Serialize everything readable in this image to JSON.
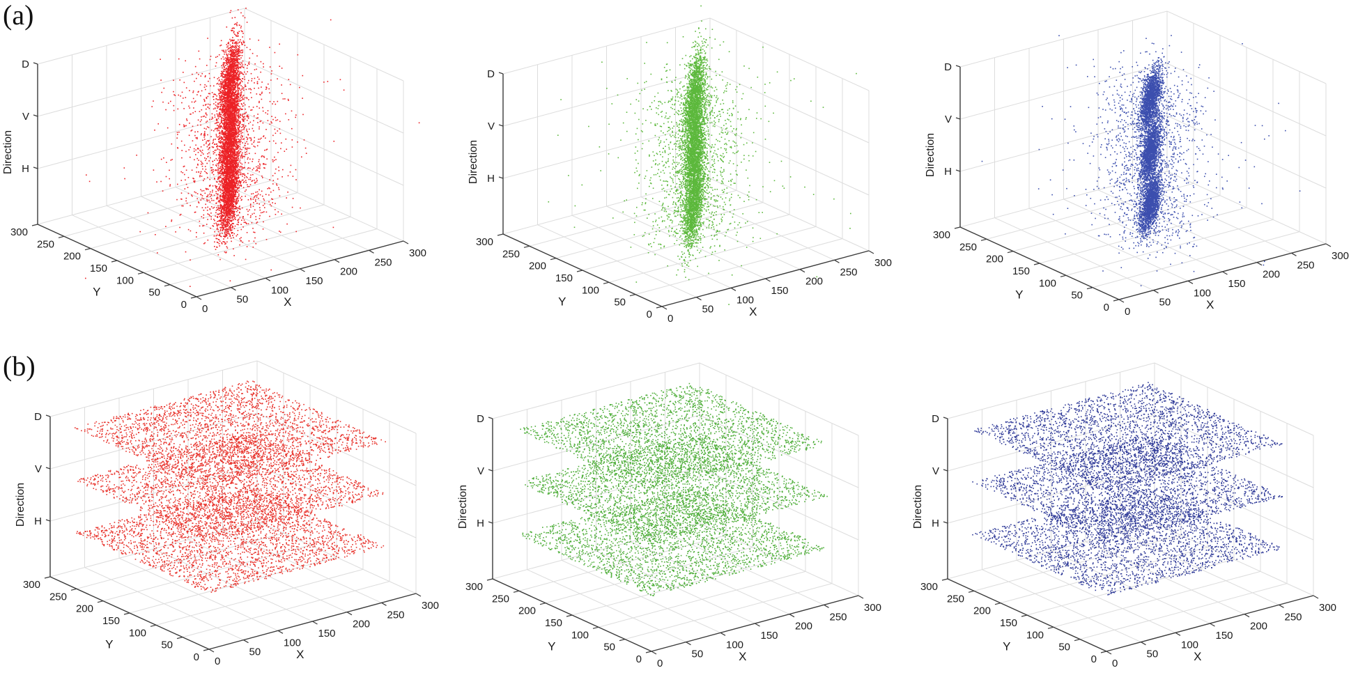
{
  "figure": {
    "row_labels": [
      "(a)",
      "(b)"
    ]
  },
  "chart_data": [
    {
      "id": "a-red",
      "row": "(a)",
      "type": "scatter3d",
      "color": "#ec2226",
      "xlabel": "X",
      "ylabel": "Y",
      "zlabel": "Direction",
      "xlim": [
        0,
        300
      ],
      "ylim": [
        0,
        300
      ],
      "xticks": [
        0,
        50,
        100,
        150,
        200,
        250,
        300
      ],
      "yticks": [
        0,
        50,
        100,
        150,
        200,
        250,
        300
      ],
      "zticks": [
        "H",
        "V",
        "D"
      ],
      "grid": true,
      "distribution": "clustered",
      "clusters": [
        {
          "level": "D",
          "x_center": 155,
          "y_center": 140,
          "elongated": true
        },
        {
          "level": "V",
          "x_center": 155,
          "y_center": 140,
          "elongated": true
        },
        {
          "level": "H",
          "x_center": 155,
          "y_center": 140,
          "elongated": true
        }
      ]
    },
    {
      "id": "a-green",
      "row": "(a)",
      "type": "scatter3d",
      "color": "#5cb83c",
      "xlabel": "X",
      "ylabel": "Y",
      "zlabel": "Direction",
      "xlim": [
        0,
        300
      ],
      "ylim": [
        0,
        300
      ],
      "xticks": [
        0,
        50,
        100,
        150,
        200,
        250,
        300
      ],
      "yticks": [
        0,
        50,
        100,
        150,
        200,
        250,
        300
      ],
      "zticks": [
        "H",
        "V",
        "D"
      ],
      "grid": true,
      "distribution": "clustered",
      "clusters": [
        {
          "level": "D",
          "x_center": 150,
          "y_center": 135,
          "elongated": true
        },
        {
          "level": "V",
          "x_center": 150,
          "y_center": 135,
          "elongated": true
        },
        {
          "level": "H",
          "x_center": 150,
          "y_center": 135,
          "elongated": true
        }
      ]
    },
    {
      "id": "a-blue",
      "row": "(a)",
      "type": "scatter3d",
      "color": "#3c4fae",
      "xlabel": "X",
      "ylabel": "Y",
      "zlabel": "Direction",
      "xlim": [
        0,
        300
      ],
      "ylim": [
        0,
        300
      ],
      "xticks": [
        0,
        50,
        100,
        150,
        200,
        250,
        300
      ],
      "yticks": [
        0,
        50,
        100,
        150,
        200,
        250,
        300
      ],
      "zticks": [
        "H",
        "V",
        "D"
      ],
      "grid": true,
      "distribution": "clustered",
      "clusters": [
        {
          "level": "D",
          "x_center": 145,
          "y_center": 130,
          "elongated": false
        },
        {
          "level": "V",
          "x_center": 145,
          "y_center": 130,
          "elongated": false
        },
        {
          "level": "H",
          "x_center": 145,
          "y_center": 130,
          "elongated": false
        }
      ]
    },
    {
      "id": "b-red",
      "row": "(b)",
      "type": "scatter3d",
      "color": "#e8332c",
      "xlabel": "X",
      "ylabel": "Y",
      "zlabel": "Direction",
      "xlim": [
        0,
        300
      ],
      "ylim": [
        0,
        300
      ],
      "xticks": [
        0,
        50,
        100,
        150,
        200,
        250,
        300
      ],
      "yticks": [
        0,
        50,
        100,
        150,
        200,
        250,
        300
      ],
      "zticks": [
        "H",
        "V",
        "D"
      ],
      "grid": true,
      "distribution": "uniform",
      "layers": [
        {
          "level": "D",
          "x_range": [
            0,
            256
          ],
          "y_range": [
            0,
            256
          ]
        },
        {
          "level": "V",
          "x_range": [
            0,
            256
          ],
          "y_range": [
            0,
            256
          ]
        },
        {
          "level": "H",
          "x_range": [
            0,
            256
          ],
          "y_range": [
            0,
            256
          ]
        }
      ]
    },
    {
      "id": "b-green",
      "row": "(b)",
      "type": "scatter3d",
      "color": "#4fae3a",
      "xlabel": "X",
      "ylabel": "Y",
      "zlabel": "Direction",
      "xlim": [
        0,
        300
      ],
      "ylim": [
        0,
        300
      ],
      "xticks": [
        0,
        50,
        100,
        150,
        200,
        250,
        300
      ],
      "yticks": [
        0,
        50,
        100,
        150,
        200,
        250,
        300
      ],
      "zticks": [
        "H",
        "V",
        "D"
      ],
      "grid": true,
      "distribution": "uniform",
      "layers": [
        {
          "level": "D",
          "x_range": [
            0,
            256
          ],
          "y_range": [
            0,
            256
          ]
        },
        {
          "level": "V",
          "x_range": [
            0,
            256
          ],
          "y_range": [
            0,
            256
          ]
        },
        {
          "level": "H",
          "x_range": [
            0,
            256
          ],
          "y_range": [
            0,
            256
          ]
        }
      ]
    },
    {
      "id": "b-blue",
      "row": "(b)",
      "type": "scatter3d",
      "color": "#2f3a98",
      "xlabel": "X",
      "ylabel": "Y",
      "zlabel": "Direction",
      "xlim": [
        0,
        300
      ],
      "ylim": [
        0,
        300
      ],
      "xticks": [
        0,
        50,
        100,
        150,
        200,
        250,
        300
      ],
      "yticks": [
        0,
        50,
        100,
        150,
        200,
        250,
        300
      ],
      "zticks": [
        "H",
        "V",
        "D"
      ],
      "grid": true,
      "distribution": "uniform",
      "layers": [
        {
          "level": "D",
          "x_range": [
            0,
            256
          ],
          "y_range": [
            0,
            256
          ]
        },
        {
          "level": "V",
          "x_range": [
            0,
            256
          ],
          "y_range": [
            0,
            256
          ]
        },
        {
          "level": "H",
          "x_range": [
            0,
            256
          ],
          "y_range": [
            0,
            256
          ]
        }
      ]
    }
  ]
}
